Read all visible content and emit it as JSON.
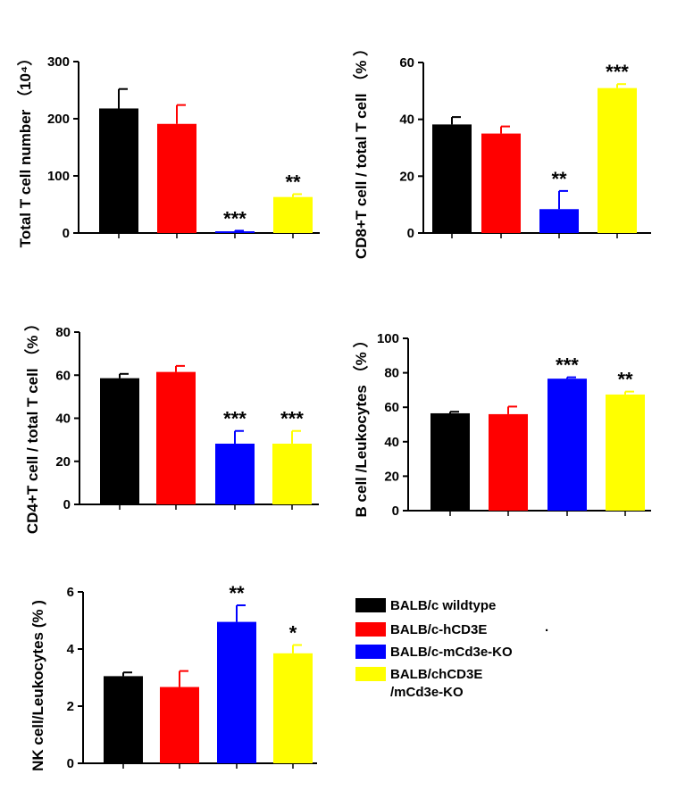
{
  "groups": [
    {
      "name": "BALB/c wildtype",
      "color": "#000000"
    },
    {
      "name": "BALB/c-hCD3E",
      "color": "#ff0000"
    },
    {
      "name": "BALB/c-mCd3e-KO",
      "color": "#0000ff"
    },
    {
      "name": "BALB/chCD3E",
      "name_line2": "/mCd3e-KO",
      "line2_color": "#e00000",
      "color": "#ffff00"
    }
  ],
  "chart_data": [
    {
      "type": "bar",
      "id": "total-t",
      "ylabel": "Total T cell number",
      "ylabel_unit": "（10⁴）",
      "categories": [
        "BALB/c wildtype",
        "BALB/c-hCD3E",
        "BALB/c-mCd3e-KO",
        "BALB/chCD3E/mCd3e-KO"
      ],
      "values": [
        218,
        191,
        3,
        63
      ],
      "errors": [
        34,
        33,
        1,
        5
      ],
      "significance": [
        "",
        "",
        "***",
        "**"
      ],
      "ylim": [
        0,
        300
      ],
      "ticks": [
        0,
        100,
        200,
        300
      ]
    },
    {
      "type": "bar",
      "id": "cd8",
      "ylabel": "CD8+T cell / total T cell",
      "ylabel_unit": "（%  ）",
      "categories": [
        "BALB/c wildtype",
        "BALB/c-hCD3E",
        "BALB/c-mCd3e-KO",
        "BALB/chCD3E/mCd3e-KO"
      ],
      "values": [
        38.2,
        35.0,
        8.4,
        51.0
      ],
      "errors": [
        2.6,
        2.5,
        6.4,
        1.4
      ],
      "significance": [
        "",
        "",
        "**",
        "***"
      ],
      "ylim": [
        0,
        60
      ],
      "ticks": [
        0,
        20,
        40,
        60
      ]
    },
    {
      "type": "bar",
      "id": "cd4",
      "ylabel": "CD4+T cell / total T cell",
      "ylabel_unit": "（%  ）",
      "categories": [
        "BALB/c wildtype",
        "BALB/c-hCD3E",
        "BALB/c-mCd3e-KO",
        "BALB/chCD3E/mCd3e-KO"
      ],
      "values": [
        58.6,
        61.5,
        28.2,
        28.2
      ],
      "errors": [
        2.0,
        2.8,
        5.9,
        5.9
      ],
      "significance": [
        "",
        "",
        "***",
        "***"
      ],
      "ylim": [
        0,
        80
      ],
      "ticks": [
        0,
        20,
        40,
        60,
        80
      ]
    },
    {
      "type": "bar",
      "id": "bcell",
      "ylabel": "B cell /Leukocytes",
      "ylabel_unit": "（%  ）",
      "categories": [
        "BALB/c wildtype",
        "BALB/c-hCD3E",
        "BALB/c-mCd3e-KO",
        "BALB/chCD3E/mCd3e-KO"
      ],
      "values": [
        56.5,
        56.0,
        76.6,
        67.4
      ],
      "errors": [
        0.9,
        4.4,
        0.8,
        1.7
      ],
      "significance": [
        "",
        "",
        "***",
        "**"
      ],
      "ylim": [
        0,
        100
      ],
      "ticks": [
        0,
        20,
        40,
        60,
        80,
        100
      ]
    },
    {
      "type": "bar",
      "id": "nk",
      "ylabel": "NK cell/Leukocytes",
      "ylabel_unit": "(%  )",
      "categories": [
        "BALB/c wildtype",
        "BALB/c-hCD3E",
        "BALB/c-mCd3e-KO",
        "BALB/chCD3E/mCd3e-KO"
      ],
      "values": [
        3.05,
        2.67,
        4.95,
        3.85
      ],
      "errors": [
        0.13,
        0.56,
        0.58,
        0.29
      ],
      "significance": [
        "",
        "",
        "**",
        "*"
      ],
      "ylim": [
        0,
        6
      ],
      "ticks": [
        0,
        2,
        4,
        6
      ]
    }
  ],
  "legend_stray_mark": "."
}
